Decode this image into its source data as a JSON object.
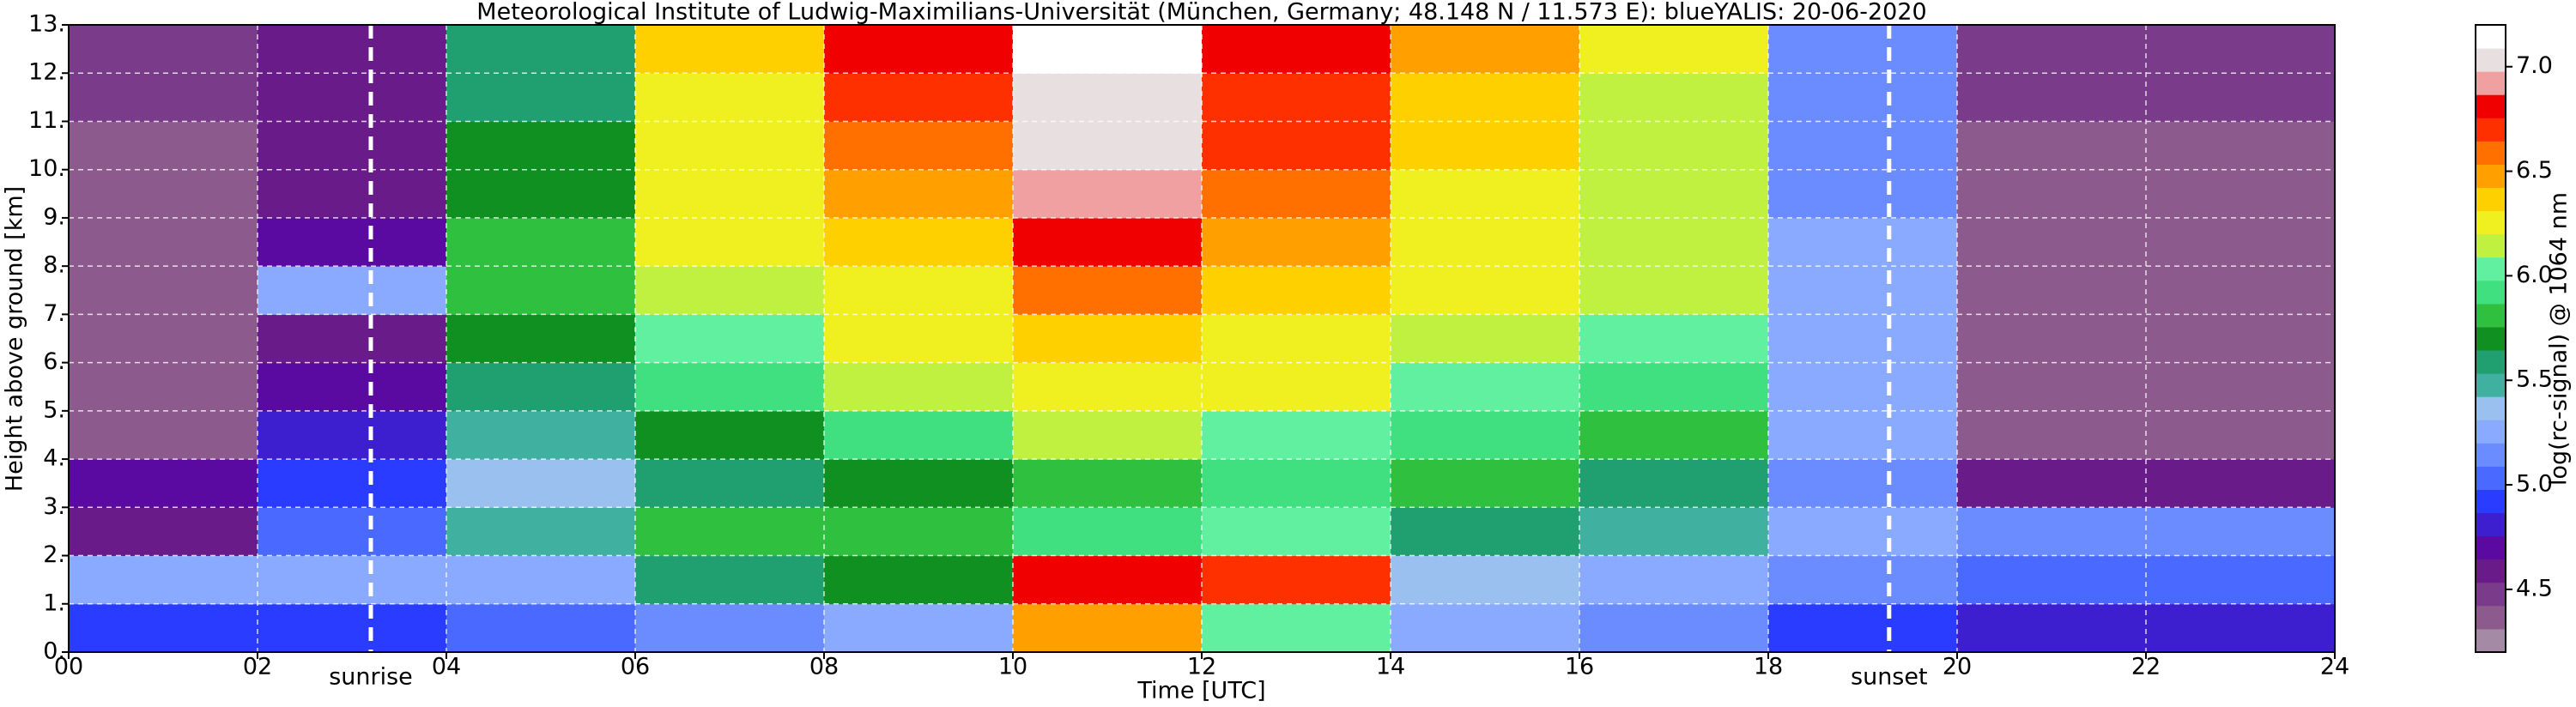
{
  "chart_data": {
    "type": "heatmap",
    "title": "Meteorological Institute of Ludwig-Maximilians-Universität (München, Germany; 48.148 N / 11.573 E):    blueYALIS: 20-06-2020",
    "x_label": "Time [UTC]",
    "y_label": "Height above ground [km]",
    "xlim": [
      0,
      24
    ],
    "ylim": [
      0,
      13
    ],
    "xticks": [
      {
        "value": 0,
        "label": "00"
      },
      {
        "value": 2,
        "label": "02"
      },
      {
        "value": 4,
        "label": "04"
      },
      {
        "value": 6,
        "label": "06"
      },
      {
        "value": 8,
        "label": "08"
      },
      {
        "value": 10,
        "label": "10"
      },
      {
        "value": 12,
        "label": "12"
      },
      {
        "value": 14,
        "label": "14"
      },
      {
        "value": 16,
        "label": "16"
      },
      {
        "value": 18,
        "label": "18"
      },
      {
        "value": 20,
        "label": "20"
      },
      {
        "value": 22,
        "label": "22"
      },
      {
        "value": 24,
        "label": "24"
      }
    ],
    "yticks": [
      {
        "value": 0,
        "label": "0."
      },
      {
        "value": 1,
        "label": "1."
      },
      {
        "value": 2,
        "label": "2."
      },
      {
        "value": 3,
        "label": "3."
      },
      {
        "value": 4,
        "label": "4."
      },
      {
        "value": 5,
        "label": "5."
      },
      {
        "value": 6,
        "label": "6."
      },
      {
        "value": 7,
        "label": "7."
      },
      {
        "value": 8,
        "label": "8."
      },
      {
        "value": 9,
        "label": "9."
      },
      {
        "value": 10,
        "label": "10."
      },
      {
        "value": 11,
        "label": "11."
      },
      {
        "value": 12,
        "label": "12."
      },
      {
        "value": 13,
        "label": "13."
      }
    ],
    "grid": true,
    "values": [
      [
        4.9,
        4.9,
        5.0,
        5.1,
        5.2,
        6.5,
        6.0,
        5.2,
        5.1,
        4.9,
        4.8,
        4.8
      ],
      [
        5.3,
        5.2,
        5.2,
        5.6,
        5.7,
        6.8,
        6.7,
        5.4,
        5.3,
        5.1,
        5.0,
        5.0
      ],
      [
        4.6,
        5.0,
        5.5,
        5.8,
        5.8,
        5.9,
        6.0,
        5.6,
        5.5,
        5.2,
        5.1,
        5.1
      ],
      [
        4.7,
        4.9,
        5.4,
        5.6,
        5.7,
        5.8,
        5.9,
        5.8,
        5.6,
        5.1,
        4.6,
        4.6
      ],
      [
        4.4,
        4.8,
        5.5,
        5.7,
        5.9,
        6.1,
        6.0,
        5.9,
        5.8,
        5.3,
        4.4,
        4.4
      ],
      [
        4.4,
        4.7,
        5.6,
        5.9,
        6.1,
        6.3,
        6.2,
        6.0,
        5.9,
        5.2,
        4.4,
        4.4
      ],
      [
        4.4,
        4.6,
        5.7,
        6.0,
        6.2,
        6.4,
        6.3,
        6.1,
        6.0,
        5.2,
        4.4,
        4.4
      ],
      [
        4.4,
        5.2,
        5.8,
        6.1,
        6.3,
        6.6,
        6.4,
        6.2,
        6.1,
        5.2,
        4.4,
        4.4
      ],
      [
        4.4,
        4.7,
        5.8,
        6.2,
        6.4,
        6.8,
        6.5,
        6.3,
        6.1,
        5.2,
        4.4,
        4.4
      ],
      [
        4.4,
        4.6,
        5.7,
        6.2,
        6.5,
        6.9,
        6.6,
        6.3,
        6.1,
        5.1,
        4.4,
        4.4
      ],
      [
        4.4,
        4.6,
        5.7,
        6.3,
        6.6,
        7.0,
        6.7,
        6.4,
        6.1,
        5.1,
        4.4,
        4.4
      ],
      [
        4.5,
        4.6,
        5.6,
        6.3,
        6.7,
        7.0,
        6.7,
        6.4,
        6.1,
        5.1,
        4.5,
        4.5
      ],
      [
        4.5,
        4.6,
        5.6,
        6.4,
        6.8,
        7.1,
        6.8,
        6.5,
        6.2,
        5.1,
        4.5,
        4.5
      ]
    ],
    "annotations": [
      {
        "text": "sunrise",
        "x": 3.2
      },
      {
        "text": "sunset",
        "x": 19.28
      }
    ],
    "colorbar": {
      "label": "log(rc-signal) @ 1064 nm",
      "lim": [
        4.2,
        7.2
      ],
      "ticks": [
        4.5,
        {
          "value": 5,
          "label": "5.0"
        },
        5.5,
        {
          "value": 6,
          "label": "6.0"
        },
        6.5,
        {
          "value": 7,
          "label": "7.0"
        }
      ],
      "colors": [
        "#a58aa5",
        "#8c5a8c",
        "#7a3b8a",
        "#6a1b8a",
        "#5a0aa0",
        "#3d1fd0",
        "#2a3cff",
        "#4a6aff",
        "#6a8cff",
        "#8aaaff",
        "#9ac0f0",
        "#40b0a0",
        "#20a070",
        "#109020",
        "#30c040",
        "#40e080",
        "#60f0a0",
        "#c0f040",
        "#f0f020",
        "#ffd000",
        "#ffa000",
        "#ff7000",
        "#ff3000",
        "#f00000",
        "#f0a0a0",
        "#e8e0e0",
        "#ffffff"
      ]
    }
  }
}
